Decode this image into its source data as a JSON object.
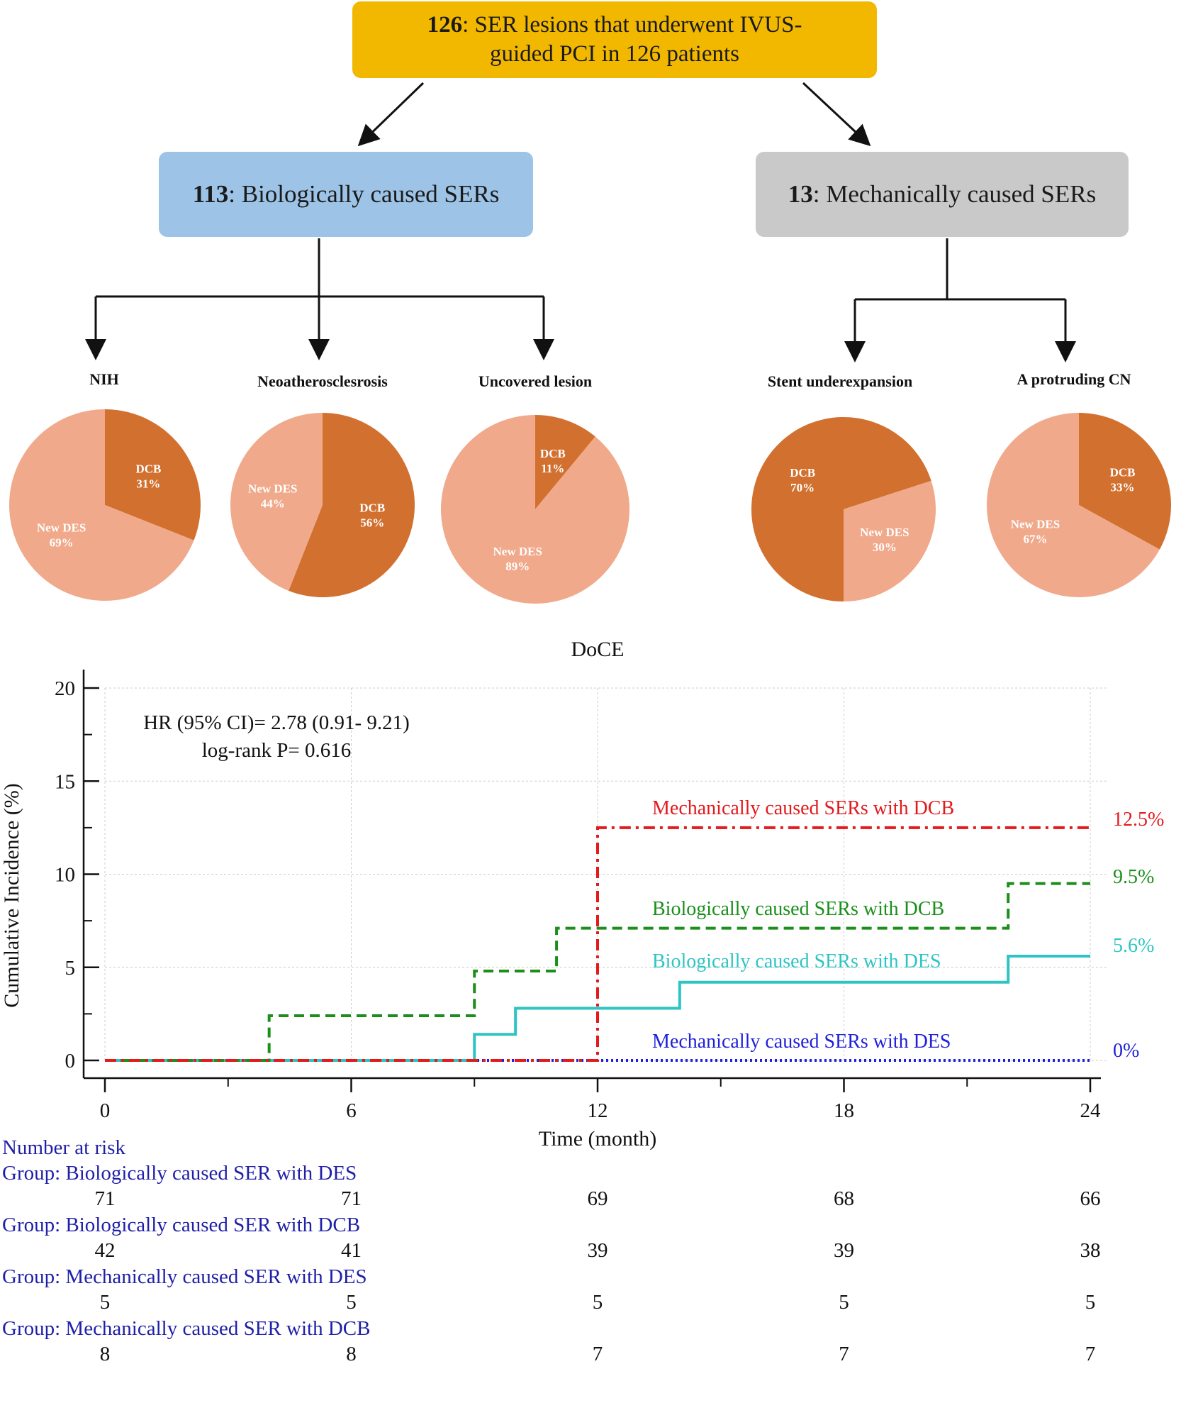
{
  "flow": {
    "top": {
      "count": "126",
      "text": ": SER lesions that underwent IVUS-",
      "text2": "guided PCI in 126 patients",
      "color": "#f2b800"
    },
    "bio": {
      "count": "113",
      "text": ": Biologically caused SERs",
      "color": "#9dc3e6"
    },
    "mech": {
      "count": "13",
      "text": ": Mechanically caused SERs",
      "color": "#c9c9c9"
    }
  },
  "pies": [
    {
      "title": "NIH",
      "slices": [
        {
          "label": "DCB",
          "pct": "31%",
          "value": 31,
          "color": "#d2702f"
        },
        {
          "label": "New DES",
          "pct": "69%",
          "value": 69,
          "color": "#f0a98a"
        }
      ]
    },
    {
      "title": "Neoatherosclesrosis",
      "slices": [
        {
          "label": "DCB",
          "pct": "56%",
          "value": 56,
          "color": "#d2702f"
        },
        {
          "label": "New DES",
          "pct": "44%",
          "value": 44,
          "color": "#f0a98a"
        }
      ]
    },
    {
      "title": "Uncovered lesion",
      "slices": [
        {
          "label": "DCB",
          "pct": "11%",
          "value": 11,
          "color": "#d2702f"
        },
        {
          "label": "New DES",
          "pct": "89%",
          "value": 89,
          "color": "#f0a98a"
        }
      ]
    },
    {
      "title": "Stent underexpansion",
      "slices": [
        {
          "label": "DCB",
          "pct": "70%",
          "value": 70,
          "color": "#d2702f"
        },
        {
          "label": "New DES",
          "pct": "30%",
          "value": 30,
          "color": "#f0a98a"
        }
      ]
    },
    {
      "title": "A protruding CN",
      "slices": [
        {
          "label": "DCB",
          "pct": "33%",
          "value": 33,
          "color": "#d2702f"
        },
        {
          "label": "New DES",
          "pct": "67%",
          "value": 67,
          "color": "#f0a98a"
        }
      ]
    }
  ],
  "chart_data": {
    "type": "line",
    "title": "DoCE",
    "xlabel": "Time (month)",
    "ylabel": "Cumulative Incidence (%)",
    "xlim": [
      0,
      24
    ],
    "ylim": [
      0,
      20
    ],
    "xticks": [
      0,
      6,
      12,
      18,
      24
    ],
    "yticks": [
      0,
      5,
      10,
      15,
      20
    ],
    "annotation": [
      "HR (95% CI)= 2.78 (0.91- 9.21)",
      "log-rank P= 0.616"
    ],
    "series": [
      {
        "name": "Mechanically caused SERs with DCB",
        "end_label": "12.5%",
        "color": "#e31a1c",
        "style": "dashdot",
        "x": [
          0,
          12,
          24
        ],
        "y": [
          0,
          12.5,
          12.5
        ]
      },
      {
        "name": "Biologically caused SERs with DCB",
        "end_label": "9.5%",
        "color": "#1a8f1a",
        "style": "dashed",
        "x": [
          0,
          4,
          9,
          11,
          22,
          24
        ],
        "y": [
          0,
          2.4,
          4.8,
          7.1,
          9.5,
          9.5
        ]
      },
      {
        "name": "Biologically caused SERs with DES",
        "end_label": "5.6%",
        "color": "#2ec4c4",
        "style": "solid",
        "x": [
          0,
          9,
          10,
          14,
          22,
          24
        ],
        "y": [
          0,
          1.4,
          2.8,
          4.2,
          5.6,
          5.6
        ]
      },
      {
        "name": "Mechanically caused SERs with DES",
        "end_label": "0%",
        "color": "#1f1fdd",
        "style": "dotted",
        "x": [
          0,
          24
        ],
        "y": [
          0,
          0
        ]
      }
    ]
  },
  "risk_table": {
    "title": "Number at risk",
    "groups": [
      {
        "label": "Group: Biologically caused SER with DES",
        "values": [
          "71",
          "71",
          "69",
          "68",
          "66"
        ]
      },
      {
        "label": "Group: Biologically caused SER with DCB",
        "values": [
          "42",
          "41",
          "39",
          "39",
          "38"
        ]
      },
      {
        "label": "Group: Mechanically caused SER with DES",
        "values": [
          "5",
          "5",
          "5",
          "5",
          "5"
        ]
      },
      {
        "label": "Group: Mechanically caused SER with DCB",
        "values": [
          "8",
          "8",
          "7",
          "7",
          "7"
        ]
      }
    ]
  }
}
